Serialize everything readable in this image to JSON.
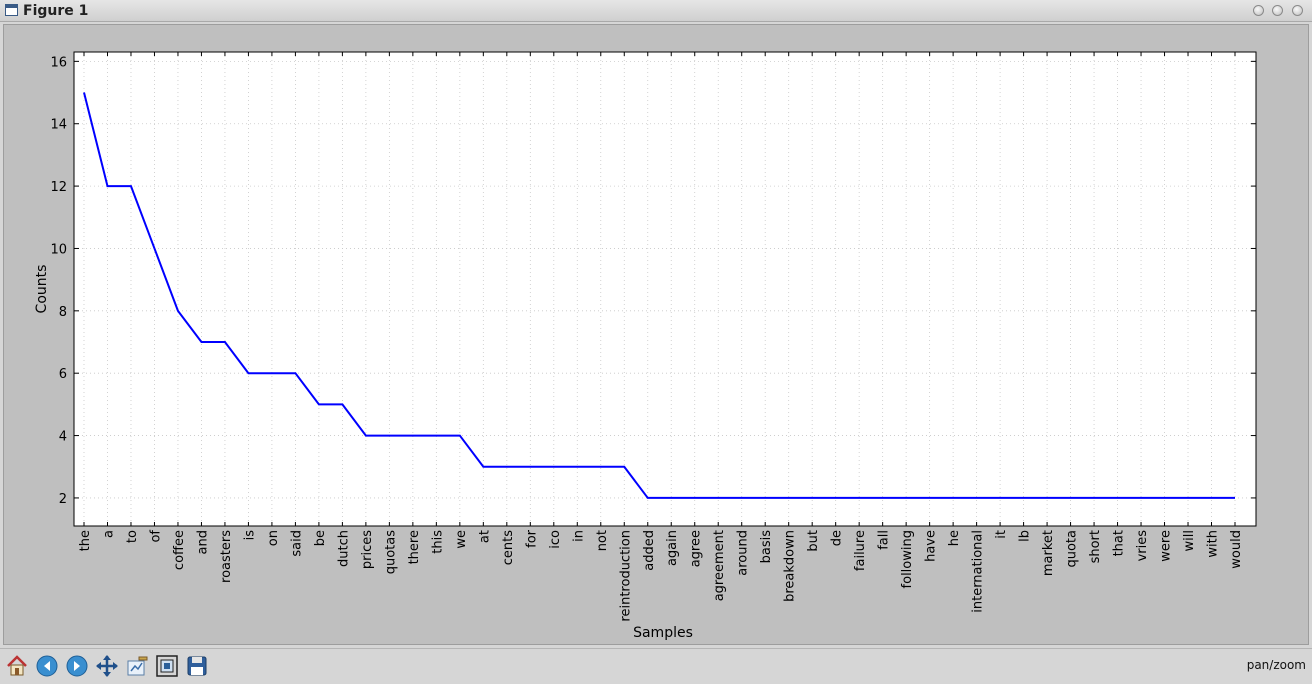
{
  "window": {
    "title": "Figure 1"
  },
  "toolbar": {
    "buttons": [
      {
        "name": "home-button",
        "icon": "home-icon"
      },
      {
        "name": "back-button",
        "icon": "arrow-left-icon"
      },
      {
        "name": "forward-button",
        "icon": "arrow-right-icon"
      },
      {
        "name": "pan-button",
        "icon": "move-icon"
      },
      {
        "name": "subplots-button",
        "icon": "subplots-icon"
      },
      {
        "name": "zoom-button",
        "icon": "zoom-rect-icon"
      },
      {
        "name": "save-button",
        "icon": "floppy-icon"
      }
    ],
    "status": "pan/zoom"
  },
  "chart_data": {
    "type": "line",
    "categories": [
      "the",
      "a",
      "to",
      "of",
      "coffee",
      "and",
      "roasters",
      "is",
      "on",
      "said",
      "be",
      "dutch",
      "prices",
      "quotas",
      "there",
      "this",
      "we",
      "at",
      "cents",
      "for",
      "ico",
      "in",
      "not",
      "reintroduction",
      "added",
      "again",
      "agree",
      "agreement",
      "around",
      "basis",
      "breakdown",
      "but",
      "de",
      "failure",
      "fall",
      "following",
      "have",
      "he",
      "international",
      "it",
      "lb",
      "market",
      "quota",
      "short",
      "that",
      "vries",
      "were",
      "will",
      "with",
      "would"
    ],
    "values": [
      15,
      12,
      12,
      10,
      8,
      7,
      7,
      6,
      6,
      6,
      5,
      5,
      4,
      4,
      4,
      4,
      4,
      3,
      3,
      3,
      3,
      3,
      3,
      3,
      2,
      2,
      2,
      2,
      2,
      2,
      2,
      2,
      2,
      2,
      2,
      2,
      2,
      2,
      2,
      2,
      2,
      2,
      2,
      2,
      2,
      2,
      2,
      2,
      2,
      2
    ],
    "xlabel": "Samples",
    "ylabel": "Counts",
    "ylim": [
      1.1,
      16.3
    ],
    "yticks": [
      2,
      4,
      6,
      8,
      10,
      12,
      14,
      16
    ],
    "grid": true,
    "line_color": "#0000ff"
  }
}
